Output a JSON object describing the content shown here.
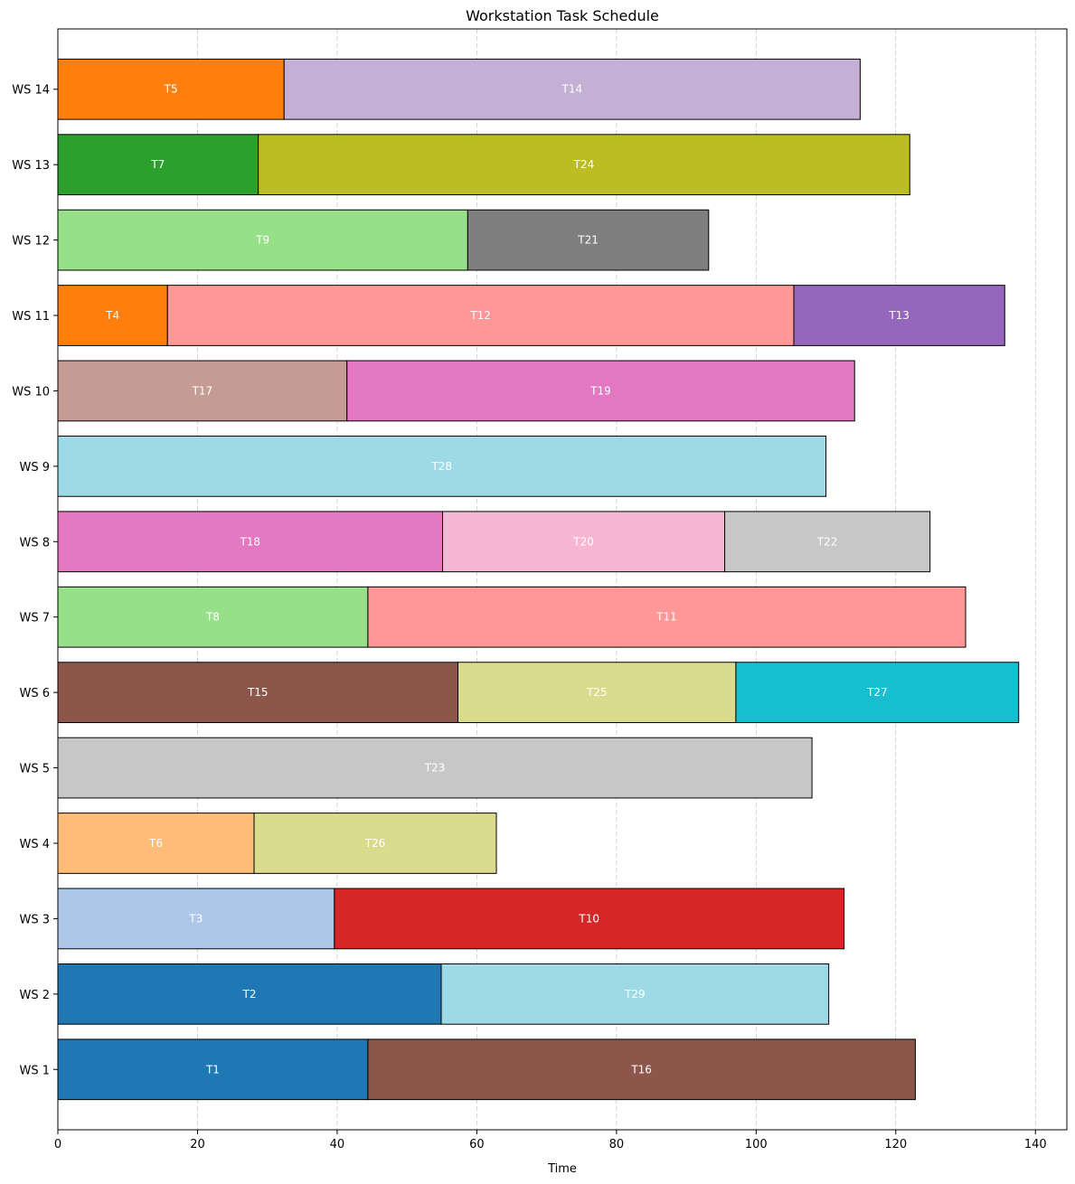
{
  "chart_data": {
    "type": "bar",
    "orientation": "horizontal-stacked-gantt",
    "title": "Workstation Task Schedule",
    "xlabel": "Time",
    "ylabel": "",
    "xlim": [
      0,
      144.5
    ],
    "xticks": [
      0,
      20,
      40,
      60,
      80,
      100,
      120,
      140
    ],
    "grid": "x-dashed",
    "categories": [
      "WS 1",
      "WS 2",
      "WS 3",
      "WS 4",
      "WS 5",
      "WS 6",
      "WS 7",
      "WS 8",
      "WS 9",
      "WS 10",
      "WS 11",
      "WS 12",
      "WS 13",
      "WS 14"
    ],
    "tasks": [
      {
        "ws": "WS 1",
        "name": "T1",
        "start": 0,
        "end": 44.4,
        "color": "#1f77b4"
      },
      {
        "ws": "WS 1",
        "name": "T16",
        "start": 44.4,
        "end": 122.8,
        "color": "#8c564b"
      },
      {
        "ws": "WS 2",
        "name": "T2",
        "start": 0,
        "end": 54.9,
        "color": "#1f77b4"
      },
      {
        "ws": "WS 2",
        "name": "T29",
        "start": 54.9,
        "end": 110.4,
        "color": "#9edae5"
      },
      {
        "ws": "WS 3",
        "name": "T3",
        "start": 0,
        "end": 39.6,
        "color": "#aec7e8"
      },
      {
        "ws": "WS 3",
        "name": "T10",
        "start": 39.6,
        "end": 112.6,
        "color": "#d62728"
      },
      {
        "ws": "WS 4",
        "name": "T6",
        "start": 0,
        "end": 28.1,
        "color": "#ffbb78"
      },
      {
        "ws": "WS 4",
        "name": "T26",
        "start": 28.1,
        "end": 62.8,
        "color": "#dbdb8d"
      },
      {
        "ws": "WS 5",
        "name": "T23",
        "start": 0,
        "end": 108.0,
        "color": "#c7c7c7"
      },
      {
        "ws": "WS 6",
        "name": "T15",
        "start": 0,
        "end": 57.3,
        "color": "#8c564b"
      },
      {
        "ws": "WS 6",
        "name": "T25",
        "start": 57.3,
        "end": 97.1,
        "color": "#dbdb8d"
      },
      {
        "ws": "WS 6",
        "name": "T27",
        "start": 97.1,
        "end": 137.6,
        "color": "#17becf"
      },
      {
        "ws": "WS 7",
        "name": "T8",
        "start": 0,
        "end": 44.4,
        "color": "#98df8a"
      },
      {
        "ws": "WS 7",
        "name": "T11",
        "start": 44.4,
        "end": 130.0,
        "color": "#ff9896"
      },
      {
        "ws": "WS 8",
        "name": "T18",
        "start": 0,
        "end": 55.1,
        "color": "#e377c2"
      },
      {
        "ws": "WS 8",
        "name": "T20",
        "start": 55.1,
        "end": 95.5,
        "color": "#f7b6d2"
      },
      {
        "ws": "WS 8",
        "name": "T22",
        "start": 95.5,
        "end": 124.9,
        "color": "#c7c7c7"
      },
      {
        "ws": "WS 9",
        "name": "T28",
        "start": 0,
        "end": 110.0,
        "color": "#9edae5"
      },
      {
        "ws": "WS 10",
        "name": "T17",
        "start": 0,
        "end": 41.4,
        "color": "#c49c94"
      },
      {
        "ws": "WS 10",
        "name": "T19",
        "start": 41.4,
        "end": 114.1,
        "color": "#e377c2"
      },
      {
        "ws": "WS 11",
        "name": "T4",
        "start": 0,
        "end": 15.7,
        "color": "#ff7f0e"
      },
      {
        "ws": "WS 11",
        "name": "T12",
        "start": 15.7,
        "end": 105.4,
        "color": "#ff9896"
      },
      {
        "ws": "WS 11",
        "name": "T13",
        "start": 105.4,
        "end": 135.6,
        "color": "#9467bd"
      },
      {
        "ws": "WS 12",
        "name": "T9",
        "start": 0,
        "end": 58.7,
        "color": "#98df8a"
      },
      {
        "ws": "WS 12",
        "name": "T21",
        "start": 58.7,
        "end": 93.2,
        "color": "#7f7f7f"
      },
      {
        "ws": "WS 13",
        "name": "T7",
        "start": 0,
        "end": 28.7,
        "color": "#2ca02c"
      },
      {
        "ws": "WS 13",
        "name": "T24",
        "start": 28.7,
        "end": 122.0,
        "color": "#bcbd22"
      },
      {
        "ws": "WS 14",
        "name": "T5",
        "start": 0,
        "end": 32.4,
        "color": "#ff7f0e"
      },
      {
        "ws": "WS 14",
        "name": "T14",
        "start": 32.4,
        "end": 114.9,
        "color": "#c5b0d5"
      }
    ]
  }
}
